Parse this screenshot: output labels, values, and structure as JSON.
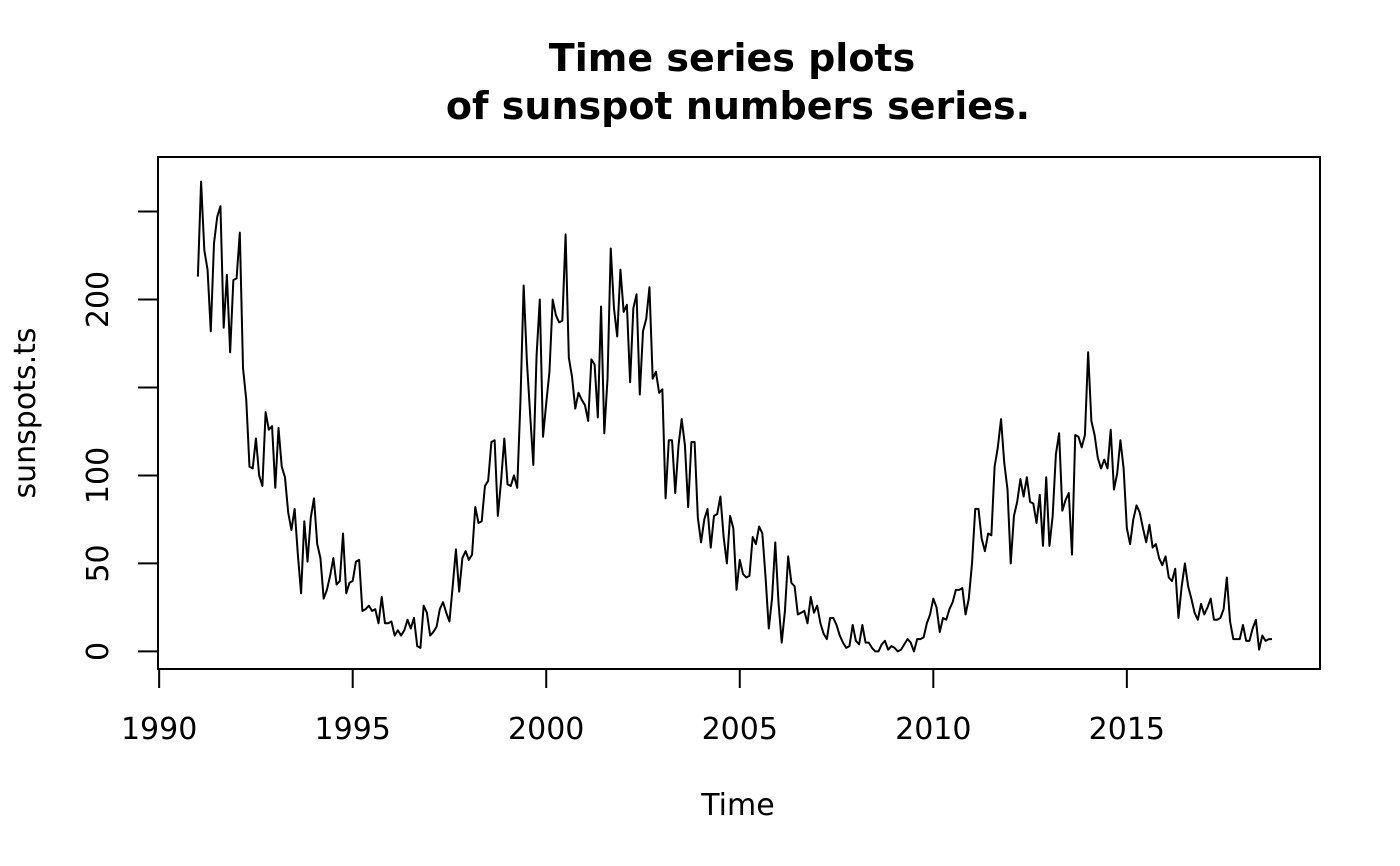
{
  "chart_data": {
    "type": "line",
    "title_lines": [
      "Time series plots",
      "of sunspot numbers series."
    ],
    "xlabel": "Time",
    "ylabel": "sunspots.ts",
    "x_ticks": [
      1990,
      1995,
      2000,
      2005,
      2010,
      2015
    ],
    "y_ticks": [
      0,
      50,
      100,
      150,
      200,
      250
    ],
    "y_tick_labels": [
      "0",
      "50",
      "100",
      "",
      "200",
      ""
    ],
    "xlim": [
      1989.97,
      2019.99
    ],
    "ylim": [
      -10,
      281
    ],
    "grid": false,
    "legend": "none",
    "series": [
      {
        "start": 1991.0,
        "frequency": 12,
        "values": [
          213,
          267,
          228,
          217,
          182,
          232,
          247,
          253,
          184,
          214,
          170,
          211,
          212,
          238,
          161,
          143,
          105,
          104,
          121,
          100,
          94,
          136,
          126,
          128,
          93,
          127,
          105,
          99,
          79,
          69,
          81,
          55,
          33,
          74,
          51,
          76,
          87,
          61,
          53,
          30,
          35,
          43,
          53,
          38,
          40,
          67,
          33,
          39,
          40,
          51,
          52,
          23,
          24,
          26,
          23,
          24,
          16,
          31,
          16,
          16,
          17,
          9,
          12,
          9,
          12,
          18,
          13,
          19,
          3,
          2,
          26,
          22,
          9,
          11,
          14,
          24,
          28,
          22,
          17,
          37,
          58,
          34,
          53,
          57,
          52,
          55,
          82,
          73,
          74,
          94,
          97,
          119,
          120,
          77,
          97,
          121,
          95,
          94,
          100,
          93,
          142,
          208,
          165,
          135,
          106,
          168,
          200,
          122,
          141,
          159,
          200,
          191,
          187,
          188,
          237,
          167,
          156,
          138,
          147,
          143,
          140,
          131,
          166,
          163,
          133,
          196,
          124,
          155,
          229,
          195,
          179,
          217,
          193,
          197,
          153,
          195,
          203,
          146,
          182,
          189,
          207,
          155,
          159,
          147,
          149,
          87,
          120,
          120,
          90,
          117,
          132,
          117,
          82,
          119,
          119,
          76,
          62,
          75,
          81,
          59,
          77,
          78,
          88,
          65,
          50,
          77,
          70,
          35,
          52,
          44,
          42,
          43,
          65,
          61,
          71,
          67,
          42,
          13,
          30,
          62,
          28,
          5,
          23,
          54,
          39,
          37,
          21,
          22,
          23,
          16,
          31,
          22,
          26,
          16,
          10,
          7,
          19,
          19,
          15,
          9,
          5,
          2,
          3,
          15,
          6,
          4,
          15,
          5,
          5,
          2,
          0,
          0,
          4,
          6,
          1,
          3,
          2,
          0,
          1,
          4,
          7,
          5,
          0,
          7,
          7,
          8,
          16,
          21,
          30,
          25,
          11,
          19,
          18,
          24,
          28,
          35,
          35,
          36,
          21,
          30,
          50,
          81,
          81,
          64,
          57,
          67,
          66,
          105,
          116,
          132,
          107,
          92,
          50,
          77,
          85,
          98,
          88,
          99,
          85,
          84,
          73,
          89,
          60,
          99,
          60,
          77,
          112,
          124,
          80,
          86,
          90,
          55,
          123,
          122,
          116,
          123,
          170,
          131,
          123,
          110,
          104,
          109,
          104,
          126,
          92,
          101,
          120,
          104,
          70,
          61,
          75,
          83,
          79,
          70,
          62,
          72,
          59,
          61,
          53,
          49,
          54,
          42,
          40,
          47,
          19,
          37,
          50,
          37,
          30,
          22,
          18,
          27,
          21,
          25,
          30,
          18,
          18,
          19,
          24,
          42,
          17,
          7,
          7,
          7,
          15,
          6,
          6,
          13,
          18,
          1,
          9,
          6,
          7,
          7
        ]
      }
    ]
  }
}
